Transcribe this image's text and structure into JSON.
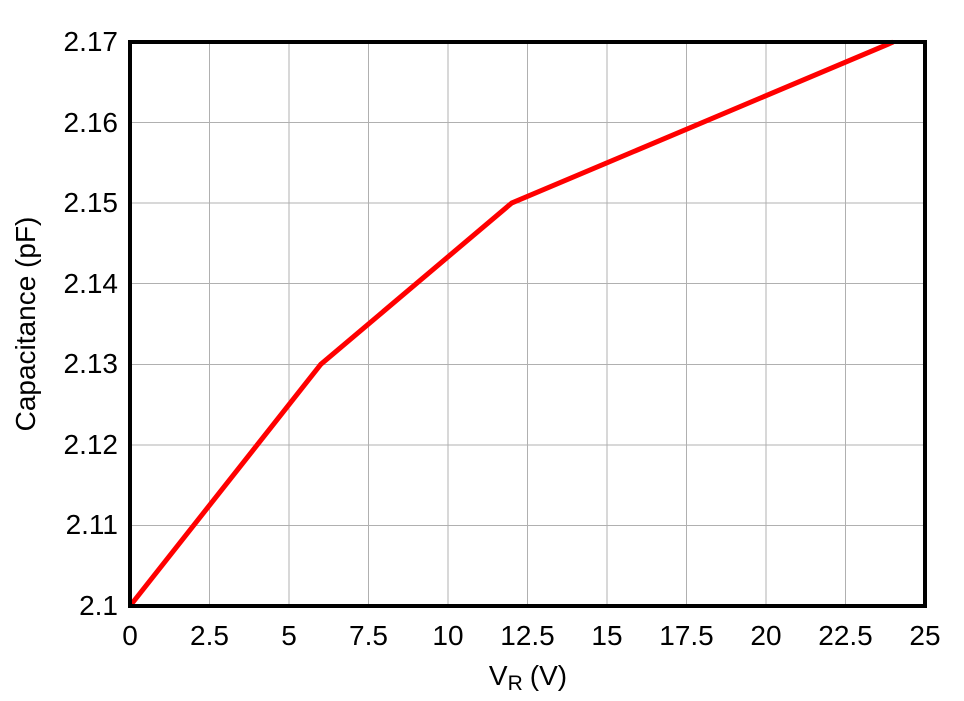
{
  "chart_data": {
    "type": "line",
    "title": "",
    "xlabel": "VR (V)",
    "xlabel_parts": {
      "symbol": "V",
      "subscript": "R",
      "unit": "(V)"
    },
    "ylabel": "Capacitance (pF)",
    "xlim": [
      0,
      25
    ],
    "ylim": [
      2.1,
      2.17
    ],
    "x_ticks": [
      0,
      2.5,
      5,
      7.5,
      10,
      12.5,
      15,
      17.5,
      20,
      22.5,
      25
    ],
    "x_tick_labels": [
      "0",
      "2.5",
      "5",
      "7.5",
      "10",
      "12.5",
      "15",
      "17.5",
      "20",
      "22.5",
      "25"
    ],
    "y_ticks": [
      2.1,
      2.11,
      2.12,
      2.13,
      2.14,
      2.15,
      2.16,
      2.17
    ],
    "y_tick_labels": [
      "2.1",
      "2.11",
      "2.12",
      "2.13",
      "2.14",
      "2.15",
      "2.16",
      "2.17"
    ],
    "grid": true,
    "legend_position": "none",
    "series": [
      {
        "name": "capacitance-vs-reverse-voltage",
        "color": "#ff0000",
        "points": [
          [
            0,
            2.1
          ],
          [
            6,
            2.13
          ],
          [
            12,
            2.15
          ],
          [
            24,
            2.17
          ]
        ]
      }
    ],
    "colors": {
      "line": "#ff0000",
      "grid": "#b0b0b0",
      "frame": "#000000",
      "text": "#000000",
      "background": "#ffffff"
    }
  }
}
